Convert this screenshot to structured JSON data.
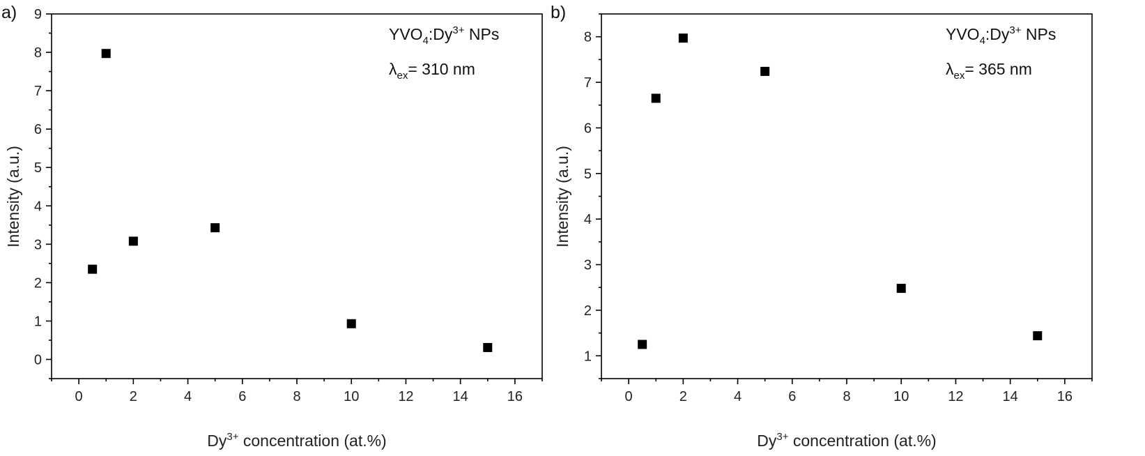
{
  "chart_data": [
    {
      "type": "scatter",
      "panel_label": "a)",
      "xlabel": {
        "prefix": "Dy",
        "sup": "3+",
        "suffix": " concentration (at.%)"
      },
      "ylabel": "Intensity (a.u.)",
      "xlim": [
        -1,
        17
      ],
      "ylim": [
        -0.5,
        9
      ],
      "xticks": [
        0,
        2,
        4,
        6,
        8,
        10,
        12,
        14,
        16
      ],
      "yticks": [
        0,
        1,
        2,
        3,
        4,
        5,
        6,
        7,
        8,
        9
      ],
      "annotation": {
        "material": {
          "a": "YVO",
          "sub": "4",
          "b": ":Dy",
          "sup": "3+",
          "c": " NPs"
        },
        "excitation": {
          "lambda": "λ",
          "sub": "ex",
          "rest": "= 310 nm"
        }
      },
      "marker_color": "#000000",
      "x": [
        0.5,
        1,
        2,
        5,
        10,
        15
      ],
      "y": [
        2.35,
        7.97,
        3.08,
        3.43,
        0.93,
        0.31
      ]
    },
    {
      "type": "scatter",
      "panel_label": "b)",
      "xlabel": {
        "prefix": "Dy",
        "sup": "3+",
        "suffix": " concentration (at.%)"
      },
      "ylabel": "Intensity (a.u.)",
      "xlim": [
        -1,
        17
      ],
      "ylim": [
        0.5,
        8.5
      ],
      "xticks": [
        0,
        2,
        4,
        6,
        8,
        10,
        12,
        14,
        16
      ],
      "yticks": [
        1,
        2,
        3,
        4,
        5,
        6,
        7,
        8
      ],
      "annotation": {
        "material": {
          "a": "YVO",
          "sub": "4",
          "b": ":Dy",
          "sup": "3+",
          "c": " NPs"
        },
        "excitation": {
          "lambda": "λ",
          "sub": "ex",
          "rest": "= 365 nm"
        }
      },
      "marker_color": "#000000",
      "x": [
        0.5,
        1,
        2,
        5,
        10,
        15
      ],
      "y": [
        1.25,
        6.65,
        7.97,
        7.24,
        2.48,
        1.44
      ]
    }
  ]
}
